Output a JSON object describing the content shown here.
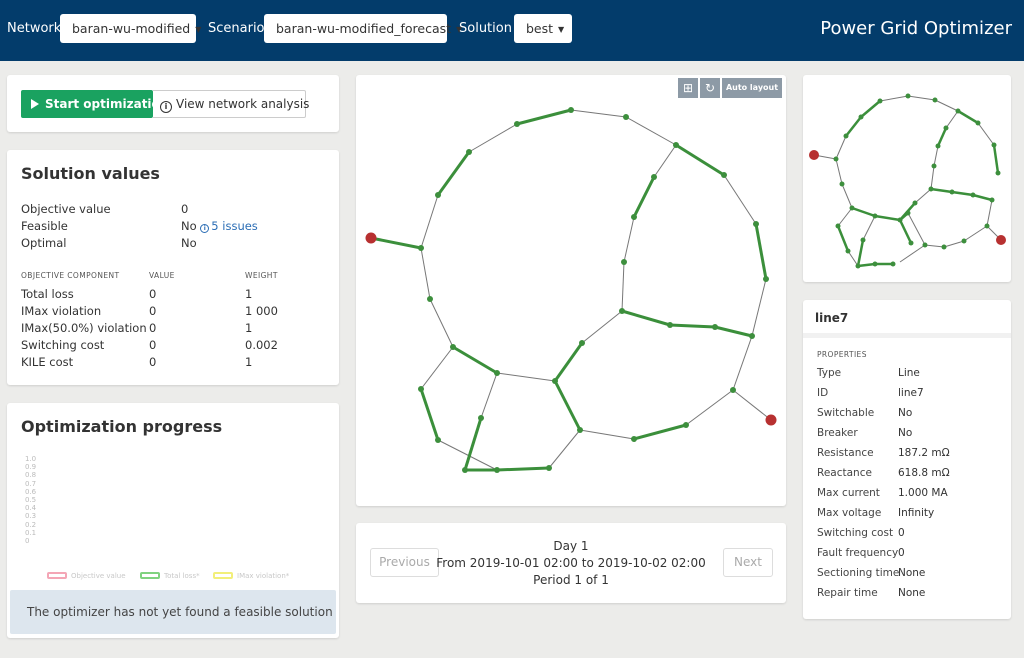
{
  "topbar": {
    "network_label": "Network",
    "network_value": "baran-wu-modified",
    "scenario_label": "Scenario",
    "scenario_value": "baran-wu-modified_forecast",
    "solution_label": "Solution",
    "solution_value": "best",
    "app_title": "Power Grid Optimizer"
  },
  "actions": {
    "start_label": "Start optimization",
    "analysis_label": "View network analysis"
  },
  "solution": {
    "title": "Solution values",
    "objective_label": "Objective value",
    "objective_value": "0",
    "feasible_label": "Feasible",
    "feasible_value": "No",
    "issues_label": "5 issues",
    "optimal_label": "Optimal",
    "optimal_value": "No",
    "headers": {
      "component": "OBJECTIVE COMPONENT",
      "value": "VALUE",
      "weight": "WEIGHT"
    },
    "components": [
      {
        "name": "Total loss",
        "value": "0",
        "weight": "1"
      },
      {
        "name": "IMax violation",
        "value": "0",
        "weight": "1 000"
      },
      {
        "name": "IMax(50.0%) violation",
        "value": "0",
        "weight": "1"
      },
      {
        "name": "Switching cost",
        "value": "0",
        "weight": "0.002"
      },
      {
        "name": "KILE cost",
        "value": "0",
        "weight": "1"
      }
    ]
  },
  "progress": {
    "title": "Optimization progress",
    "y_ticks": [
      "1.0",
      "0.9",
      "0.8",
      "0.7",
      "0.6",
      "0.5",
      "0.4",
      "0.3",
      "0.2",
      "0.1",
      "0"
    ],
    "legend": [
      {
        "label": "Objective value",
        "color": "#f4a6b6"
      },
      {
        "label": "Total loss*",
        "color": "#7fd27f"
      },
      {
        "label": "IMax violation*",
        "color": "#f2ef7a"
      }
    ],
    "notice": "The optimizer has not yet found a feasible solution"
  },
  "graph_tools": {
    "fit_icon": "fit-icon",
    "refresh_icon": "refresh-icon",
    "auto_layout_label": "Auto layout"
  },
  "period_nav": {
    "previous_label": "Previous",
    "next_label": "Next",
    "day": "Day 1",
    "range": "From 2019-10-01 02:00 to 2019-10-02 02:00",
    "period": "Period 1 of 1"
  },
  "properties": {
    "title": "line7",
    "section": "PROPERTIES",
    "items": [
      {
        "label": "Type",
        "value": "Line"
      },
      {
        "label": "ID",
        "value": "line7"
      },
      {
        "label": "Switchable",
        "value": "No"
      },
      {
        "label": "Breaker",
        "value": "No"
      },
      {
        "label": "Resistance",
        "value": "187.2 mΩ"
      },
      {
        "label": "Reactance",
        "value": "618.8 mΩ"
      },
      {
        "label": "Max current",
        "value": "1.000 MA"
      },
      {
        "label": "Max voltage",
        "value": "Infinity"
      },
      {
        "label": "Switching cost",
        "value": "0"
      },
      {
        "label": "Fault frequency",
        "value": "0"
      },
      {
        "label": "Sectioning time",
        "value": "None"
      },
      {
        "label": "Repair time",
        "value": "None"
      }
    ]
  },
  "colors": {
    "topbar": "#033c6b",
    "start_button": "#1aa260",
    "active_line": "#3b8f3b",
    "passive_line": "#777777",
    "bus_node": "#3d8f3d",
    "source_node": "#b73030"
  }
}
